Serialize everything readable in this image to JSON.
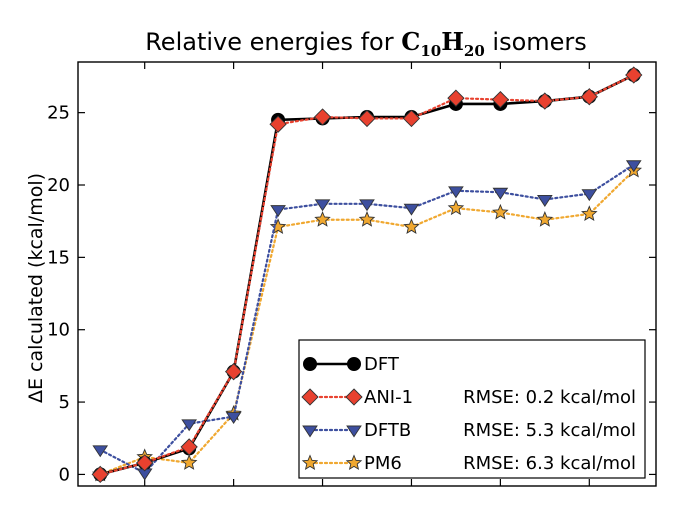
{
  "chart_data": {
    "type": "line",
    "title": {
      "prefix": "Relative energies for ",
      "formula_c": "C",
      "formula_c_sub": "10",
      "formula_h": "H",
      "formula_h_sub": "20",
      "suffix": " isomers"
    },
    "ylabel": "ΔE calculated (kcal/mol)",
    "xlabel": "",
    "x": [
      0,
      1,
      2,
      3,
      4,
      5,
      6,
      7,
      8,
      9,
      10,
      11,
      12
    ],
    "xlim": [
      -0.5,
      12.5
    ],
    "ylim": [
      -0.8,
      28.5
    ],
    "yticks": [
      0,
      5,
      10,
      15,
      20,
      25
    ],
    "xticks": [
      1,
      3,
      5,
      7,
      9,
      11
    ],
    "grid": false,
    "legend_position": "lower-right",
    "series": [
      {
        "name": "DFT",
        "rmse_label": "",
        "color": "#000000",
        "marker": "circle",
        "line": "solid",
        "values": [
          0.0,
          0.8,
          1.8,
          7.1,
          24.5,
          24.6,
          24.7,
          24.7,
          25.6,
          25.6,
          25.8,
          26.1,
          27.6
        ]
      },
      {
        "name": "ANI-1",
        "rmse_label": "RMSE: 0.2 kcal/mol",
        "color": "#e8412f",
        "marker": "diamond",
        "line": "dotted",
        "values": [
          0.0,
          0.8,
          1.9,
          7.1,
          24.2,
          24.7,
          24.6,
          24.6,
          26.0,
          25.9,
          25.8,
          26.1,
          27.6
        ]
      },
      {
        "name": "DFTB",
        "rmse_label": "RMSE: 5.3 kcal/mol",
        "color": "#3d4f9f",
        "marker": "triangle-down",
        "line": "dotted",
        "values": [
          1.7,
          0.1,
          3.5,
          4.0,
          18.3,
          18.7,
          18.7,
          18.4,
          19.6,
          19.5,
          19.0,
          19.4,
          21.4
        ]
      },
      {
        "name": "PM6",
        "rmse_label": "RMSE: 6.3 kcal/mol",
        "color": "#f0a830",
        "marker": "star",
        "line": "dotted",
        "values": [
          0.0,
          1.2,
          0.8,
          4.2,
          17.1,
          17.6,
          17.6,
          17.1,
          18.4,
          18.1,
          17.6,
          18.0,
          21.0
        ]
      }
    ]
  }
}
